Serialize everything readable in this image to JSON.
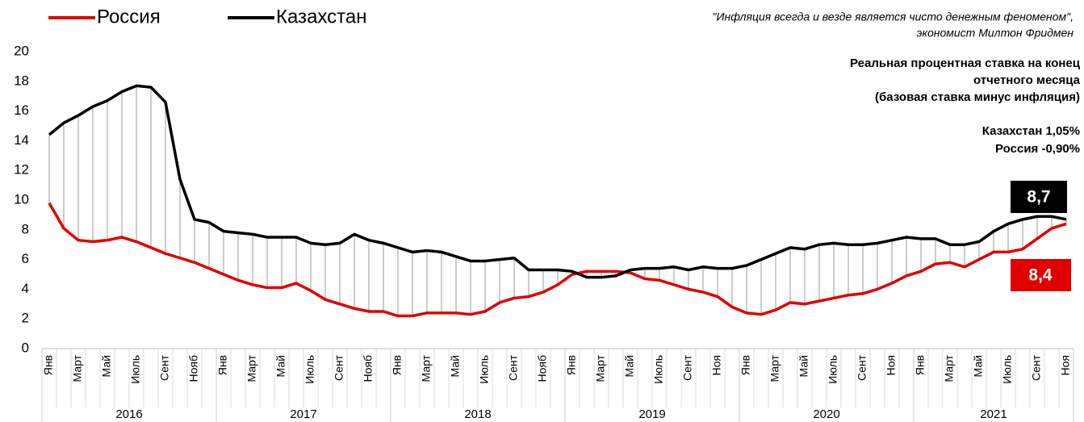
{
  "chart_data": {
    "type": "line",
    "title": [
      "Реальная процентная ставка на конец",
      "отчетного месяца",
      "(базовая ставка минус инфляция)"
    ],
    "quote": [
      "\"Инфляция всегда и везде является чисто денежным феноменом\",",
      "экономист Милтон Фридмен"
    ],
    "annotations": [
      "Казахстан 1,05%",
      "Россия -0,90%"
    ],
    "categories": [
      "Янв",
      null,
      "Март",
      null,
      "Май",
      null,
      "Июль",
      null,
      "Сент",
      null,
      "Нояб",
      null,
      "Янв",
      null,
      "Март",
      null,
      "Май",
      null,
      "Июль",
      null,
      "Сент",
      null,
      "Нояб",
      null,
      "Янв",
      null,
      "Март",
      null,
      "Май",
      null,
      "Июль",
      null,
      "Сент",
      null,
      "Нояб",
      null,
      "Янв",
      null,
      "Март",
      null,
      "Май",
      null,
      "Июль",
      null,
      "Сент",
      null,
      "Ноя",
      null,
      "Янв",
      null,
      "Март",
      null,
      "Май",
      null,
      "Июль",
      null,
      "Сент",
      null,
      "Ноя",
      null,
      "Янв",
      null,
      "Март",
      null,
      "Май",
      null,
      "Июль",
      null,
      "Сент",
      null,
      "Ноя"
    ],
    "years": [
      {
        "label": "2016",
        "months": 12
      },
      {
        "label": "2017",
        "months": 12
      },
      {
        "label": "2018",
        "months": 12
      },
      {
        "label": "2019",
        "months": 12
      },
      {
        "label": "2020",
        "months": 12
      },
      {
        "label": "2021",
        "months": 11
      }
    ],
    "series": [
      {
        "name": "Россия",
        "color": "#e00000",
        "end_label": "8,4",
        "values": [
          9.8,
          8.1,
          7.3,
          7.2,
          7.3,
          7.5,
          7.2,
          6.8,
          6.4,
          6.1,
          5.8,
          5.4,
          5.0,
          4.6,
          4.3,
          4.1,
          4.1,
          4.4,
          3.9,
          3.3,
          3.0,
          2.7,
          2.5,
          2.5,
          2.2,
          2.2,
          2.4,
          2.4,
          2.4,
          2.3,
          2.5,
          3.1,
          3.4,
          3.5,
          3.8,
          4.3,
          5.0,
          5.2,
          5.2,
          5.2,
          5.1,
          4.7,
          4.6,
          4.3,
          4.0,
          3.8,
          3.5,
          2.8,
          2.4,
          2.3,
          2.6,
          3.1,
          3.0,
          3.2,
          3.4,
          3.6,
          3.7,
          4.0,
          4.4,
          4.9,
          5.2,
          5.7,
          5.8,
          5.5,
          6.0,
          6.5,
          6.5,
          6.7,
          7.4,
          8.1,
          8.4
        ]
      },
      {
        "name": "Казахстан",
        "color": "#000000",
        "end_label": "8,7",
        "values": [
          14.4,
          15.2,
          15.7,
          16.3,
          16.7,
          17.3,
          17.7,
          17.6,
          16.6,
          11.4,
          8.7,
          8.5,
          7.9,
          7.8,
          7.7,
          7.5,
          7.5,
          7.5,
          7.1,
          7.0,
          7.1,
          7.7,
          7.3,
          7.1,
          6.8,
          6.5,
          6.6,
          6.5,
          6.2,
          5.9,
          5.9,
          6.0,
          6.1,
          5.3,
          5.3,
          5.3,
          5.2,
          4.8,
          4.8,
          4.9,
          5.3,
          5.4,
          5.4,
          5.5,
          5.3,
          5.5,
          5.4,
          5.4,
          5.6,
          6.0,
          6.4,
          6.8,
          6.7,
          7.0,
          7.1,
          7.0,
          7.0,
          7.1,
          7.3,
          7.5,
          7.4,
          7.4,
          7.0,
          7.0,
          7.2,
          7.9,
          8.4,
          8.7,
          8.9,
          8.9,
          8.7
        ]
      }
    ],
    "ylim": [
      0,
      20
    ],
    "yticks": [
      0,
      2,
      4,
      6,
      8,
      10,
      12,
      14,
      16,
      18,
      20
    ],
    "grid": false,
    "drop_lines": true
  }
}
